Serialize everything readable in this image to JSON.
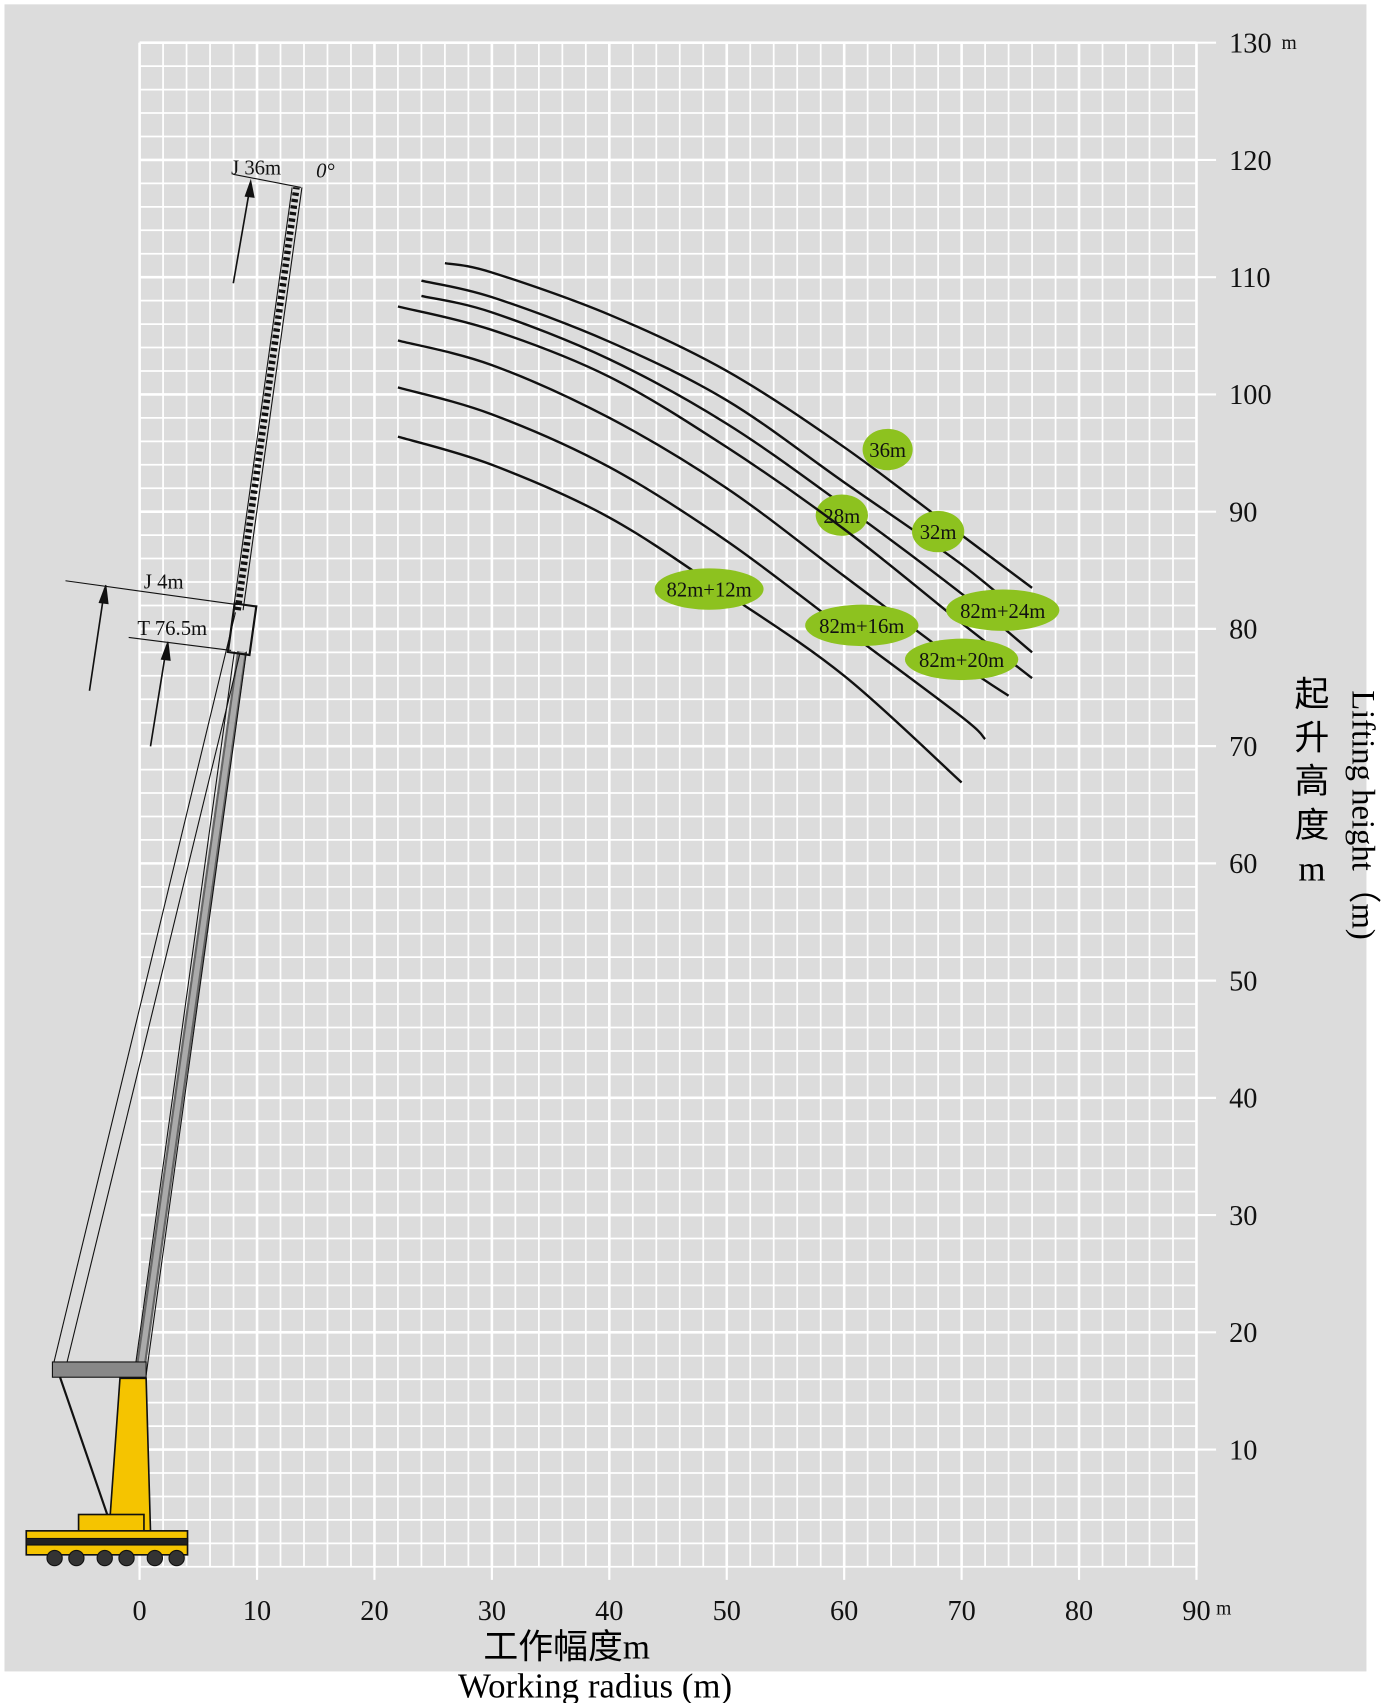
{
  "chart_data": {
    "type": "line",
    "x_title": "Working radius (m)",
    "x_title_cn": "工作幅度m",
    "y_title": "Lifting height（m)",
    "y_title_cn": [
      "起",
      "升",
      "高",
      "度",
      "m"
    ],
    "x_unit": "m",
    "y_unit": "m",
    "annotations": [
      "J 36m",
      "0°",
      "J 4m",
      "T 76.5m"
    ],
    "xlim": [
      0,
      90
    ],
    "ylim": [
      0,
      130
    ],
    "xticks": [
      0,
      10,
      20,
      30,
      40,
      50,
      60,
      70,
      80,
      90
    ],
    "yticks": [
      10,
      20,
      30,
      40,
      50,
      60,
      70,
      80,
      90,
      100,
      110,
      120,
      130
    ],
    "grid": true,
    "minor_grid_step": 2,
    "label_color": "#8dc21f",
    "series": [
      {
        "name": "36m",
        "color": "#111111",
        "x": [
          26,
          30,
          40,
          50,
          60,
          70,
          76
        ],
        "values": [
          111.2,
          110.4,
          106.8,
          102,
          95.5,
          88,
          83.5
        ]
      },
      {
        "name": "32m",
        "color": "#111111",
        "x": [
          24,
          30,
          40,
          50,
          60,
          70,
          76
        ],
        "values": [
          109.7,
          108.3,
          104.5,
          99.5,
          92.5,
          85.5,
          80.5
        ]
      },
      {
        "name": "28m",
        "color": "#111111",
        "x": [
          24,
          30,
          40,
          50,
          60,
          70,
          76
        ],
        "values": [
          108.4,
          107,
          103,
          97.5,
          90.5,
          83,
          78
        ]
      },
      {
        "name": "82m+24m",
        "color": "#111111",
        "x": [
          22,
          30,
          40,
          50,
          60,
          70,
          76
        ],
        "values": [
          107.5,
          105.5,
          101.5,
          95.5,
          88.5,
          80.5,
          75.8
        ]
      },
      {
        "name": "82m+20m",
        "color": "#111111",
        "x": [
          22,
          30,
          40,
          50,
          60,
          70,
          74
        ],
        "values": [
          104.6,
          102.5,
          98,
          92,
          84.5,
          77,
          74.3
        ]
      },
      {
        "name": "82m+16m",
        "color": "#111111",
        "x": [
          22,
          30,
          40,
          50,
          60,
          70,
          72
        ],
        "values": [
          100.6,
          98.3,
          93.8,
          87.5,
          80,
          72.5,
          70.6
        ]
      },
      {
        "name": "82m+12m",
        "color": "#111111",
        "x": [
          22,
          30,
          40,
          50,
          60,
          70
        ],
        "values": [
          96.4,
          94,
          89.5,
          83,
          76,
          66.9
        ]
      }
    ]
  }
}
